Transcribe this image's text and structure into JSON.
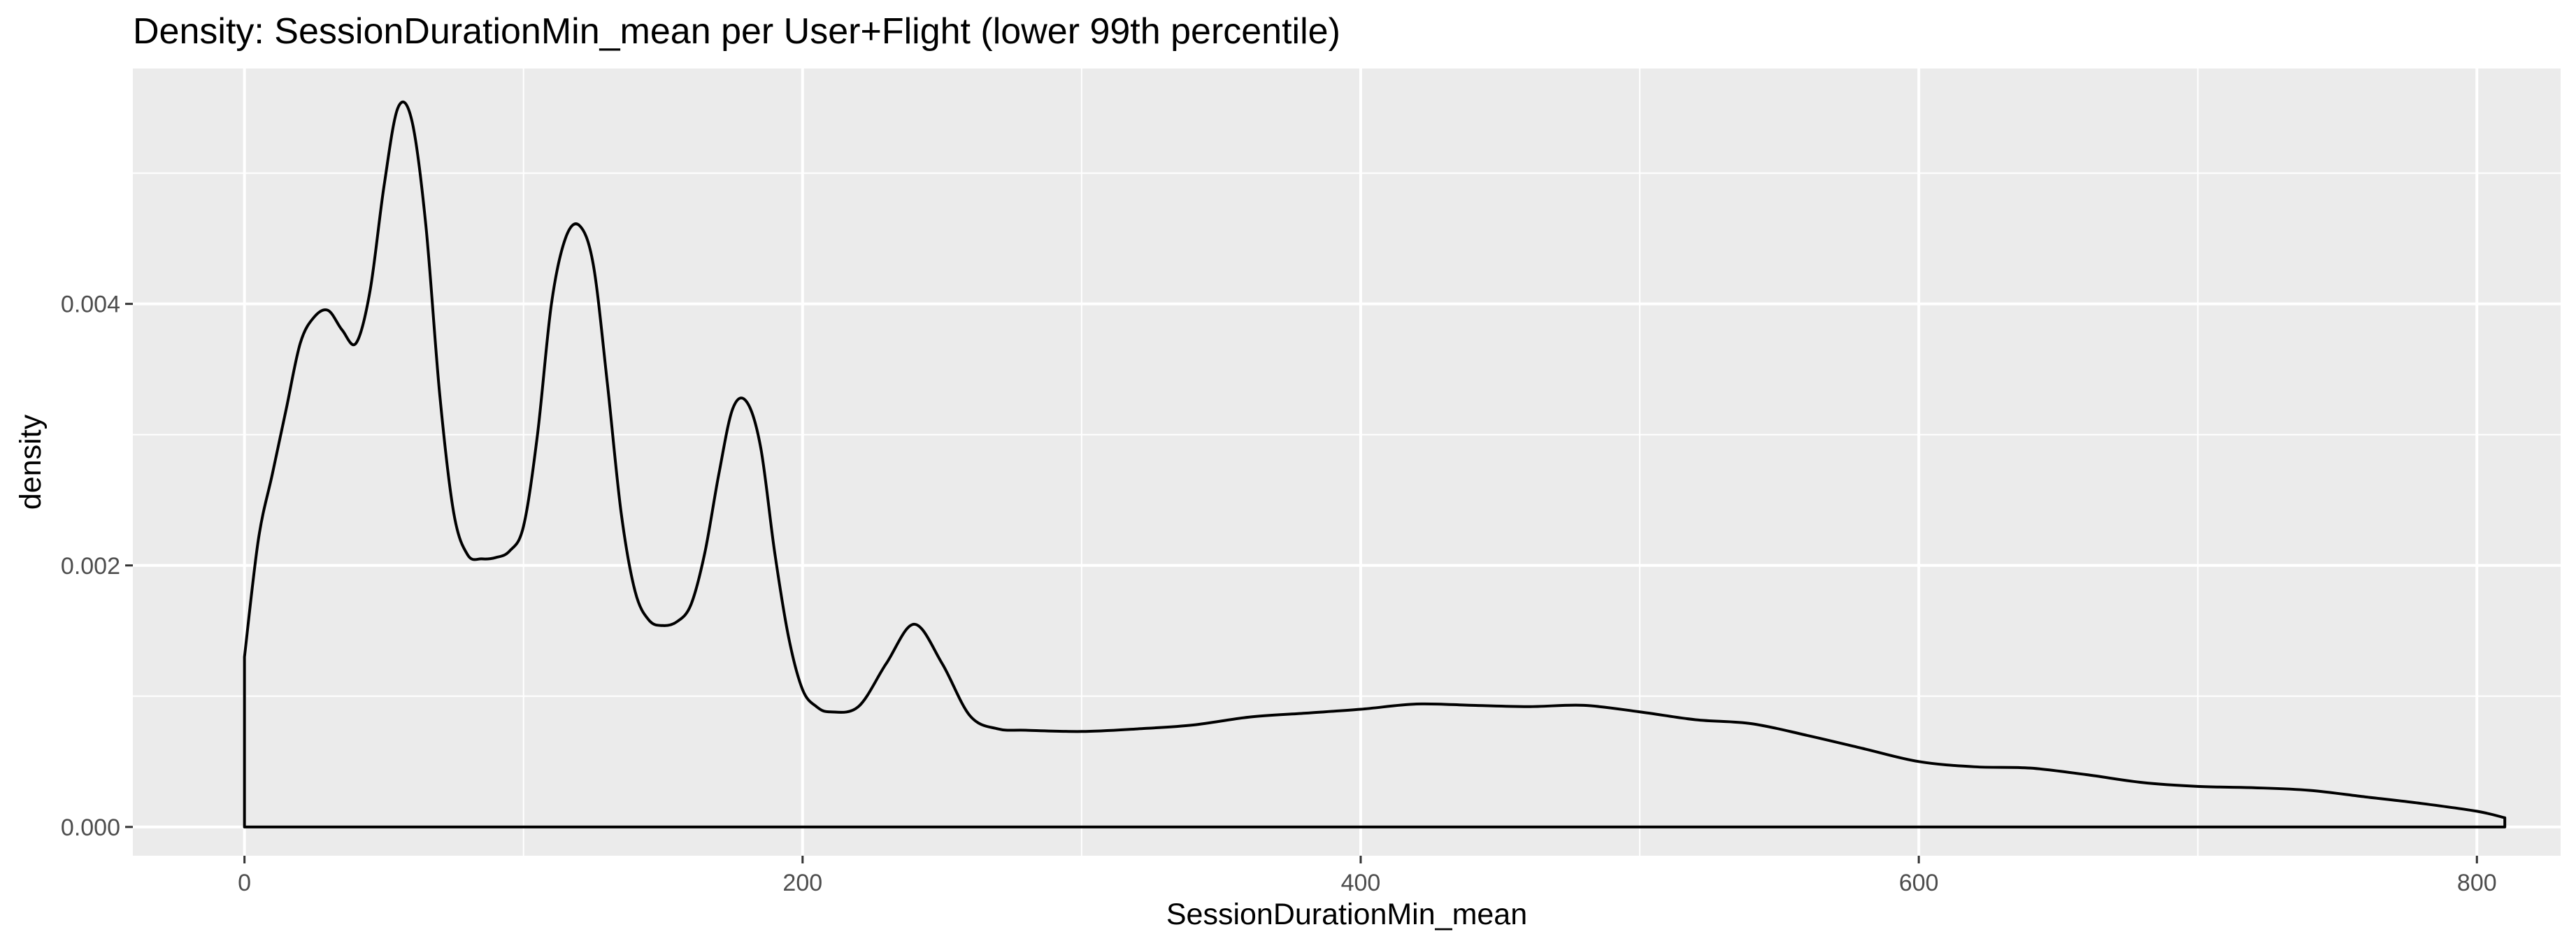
{
  "chart_data": {
    "type": "area",
    "title": "Density: SessionDurationMin_mean per User+Flight (lower 99th percentile)",
    "xlabel": "SessionDurationMin_mean",
    "ylabel": "density",
    "xlim": [
      -40,
      830
    ],
    "ylim": [
      -0.00022,
      0.0058
    ],
    "x_ticks": [
      0,
      200,
      400,
      600,
      800
    ],
    "x_tick_labels": [
      "0",
      "200",
      "400",
      "600",
      "800"
    ],
    "y_ticks": [
      0.0,
      0.002,
      0.004
    ],
    "y_tick_labels": [
      "0.000",
      "0.002",
      "0.004"
    ],
    "grid": true,
    "background": "#ebebeb",
    "line_color": "#000000",
    "fill": "none",
    "series": [
      {
        "x": [
          0,
          5,
          10,
          15,
          20,
          25,
          30,
          35,
          40,
          45,
          50,
          55,
          60,
          65,
          70,
          75,
          80,
          85,
          90,
          95,
          100,
          105,
          110,
          115,
          120,
          125,
          130,
          135,
          140,
          145,
          150,
          155,
          160,
          165,
          170,
          175,
          180,
          185,
          190,
          195,
          200,
          205,
          210,
          220,
          230,
          240,
          250,
          260,
          270,
          280,
          300,
          320,
          340,
          360,
          380,
          400,
          420,
          440,
          460,
          480,
          500,
          520,
          540,
          560,
          580,
          600,
          620,
          640,
          660,
          680,
          700,
          720,
          740,
          760,
          780,
          800,
          810
        ],
        "y": [
          0.0013,
          0.0022,
          0.0027,
          0.0032,
          0.0037,
          0.0039,
          0.00395,
          0.0038,
          0.0037,
          0.0041,
          0.0049,
          0.0055,
          0.0054,
          0.0046,
          0.0033,
          0.0024,
          0.00208,
          0.00205,
          0.00206,
          0.00211,
          0.0023,
          0.003,
          0.004,
          0.0045,
          0.0046,
          0.0043,
          0.0034,
          0.0024,
          0.0018,
          0.00158,
          0.00154,
          0.00157,
          0.0017,
          0.0021,
          0.0027,
          0.0032,
          0.00325,
          0.0029,
          0.0021,
          0.00145,
          0.00105,
          0.00092,
          0.00088,
          0.00092,
          0.00125,
          0.00155,
          0.00125,
          0.00085,
          0.00075,
          0.00074,
          0.00073,
          0.00075,
          0.00078,
          0.00084,
          0.00087,
          0.0009,
          0.00094,
          0.00093,
          0.00092,
          0.00093,
          0.00088,
          0.00082,
          0.00079,
          0.0007,
          0.0006,
          0.0005,
          0.00046,
          0.00045,
          0.0004,
          0.00034,
          0.00031,
          0.0003,
          0.00028,
          0.00023,
          0.00018,
          0.00012,
          7e-05
        ]
      }
    ]
  }
}
